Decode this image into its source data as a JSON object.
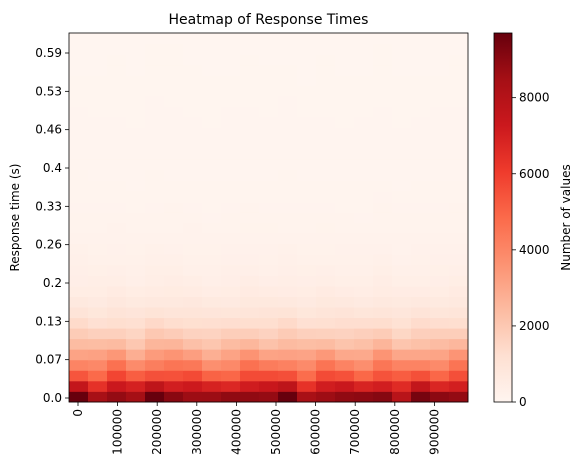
{
  "chart_data": {
    "type": "heatmap",
    "title": "Heatmap of Response Times",
    "xlabel": "",
    "ylabel": "Response time (s)",
    "colorbar_label": "Number of values",
    "colormap": "Reds",
    "colormap_stops": [
      "#fff5f0",
      "#fee0d2",
      "#fcbba1",
      "#fc9272",
      "#fb6a4a",
      "#ef3b2c",
      "#cb181d",
      "#a50f15",
      "#67000d"
    ],
    "x_tick_labels": [
      "0",
      "100000",
      "200000",
      "300000",
      "400000",
      "500000",
      "600000",
      "700000",
      "800000",
      "900000"
    ],
    "y_tick_labels": [
      "0.0",
      "0.07",
      "0.13",
      "0.2",
      "0.26",
      "0.33",
      "0.4",
      "0.46",
      "0.53",
      "0.59"
    ],
    "colorbar_ticks": [
      0,
      2000,
      4000,
      6000,
      8000
    ],
    "colorbar_range": [
      0,
      9700
    ],
    "n_time_bins": 21,
    "n_response_bins": 35,
    "row_profile": [
      9150,
      7300,
      5500,
      4300,
      3300,
      2400,
      1800,
      1300,
      950,
      700,
      520,
      400,
      320,
      260,
      210,
      170,
      140,
      115,
      95,
      80,
      68,
      58,
      50,
      44,
      39,
      35,
      32,
      29,
      27,
      25,
      23,
      21,
      20,
      19,
      18
    ],
    "column_factors": [
      1.0,
      0.93,
      1.02,
      0.9,
      1.05,
      1.03,
      0.98,
      0.9,
      0.95,
      1.03,
      0.97,
      1.02,
      0.92,
      1.0,
      0.95,
      0.93,
      1.03,
      0.9,
      0.98,
      0.95,
      1.02
    ]
  }
}
